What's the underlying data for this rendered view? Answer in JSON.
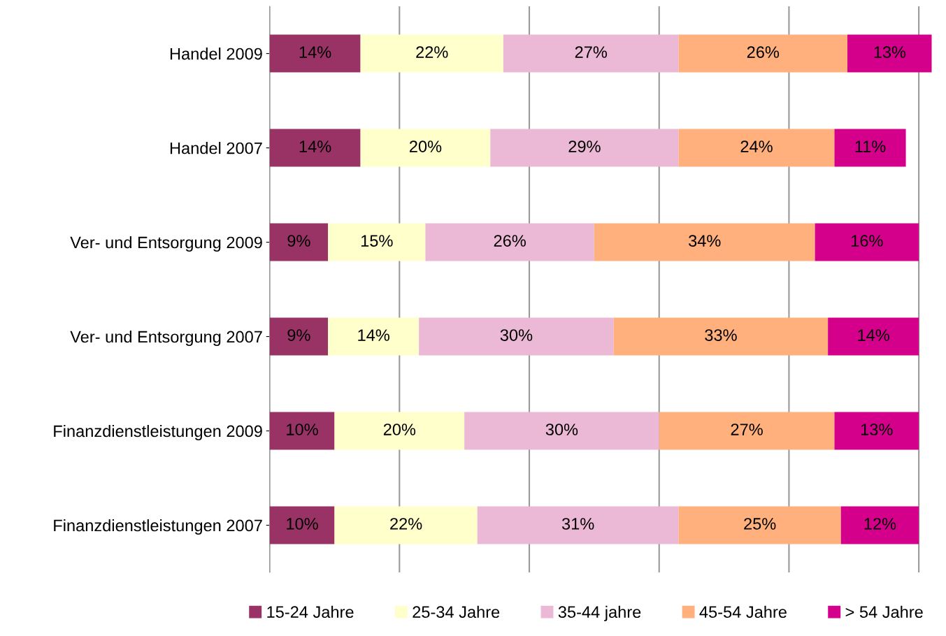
{
  "chart_data": {
    "type": "bar",
    "orientation": "horizontal",
    "stacked": true,
    "grid": "x",
    "legend": "bottom",
    "tick_labels": "y",
    "categories": [
      "Handel 2009",
      "Handel 2007",
      "Ver- und Entsorgung 2009",
      "Ver- und Entsorgung 2007",
      "Finanzdienstleistungen 2009",
      "Finanzdienstleistungen 2007"
    ],
    "series": [
      {
        "name": "15-24 Jahre",
        "color": "#993366",
        "values": [
          14,
          14,
          9,
          9,
          10,
          10
        ],
        "value_labels": [
          "14%",
          "14%",
          "9%",
          "9%",
          "10%",
          "10%"
        ]
      },
      {
        "name": "25-34 Jahre",
        "color": "#ffffcc",
        "values": [
          22,
          20,
          15,
          14,
          20,
          22
        ],
        "value_labels": [
          "22%",
          "20%",
          "15%",
          "14%",
          "20%",
          "22%"
        ]
      },
      {
        "name": "35-44 jahre",
        "color": "#ebb9d5",
        "values": [
          27,
          29,
          26,
          30,
          30,
          31
        ],
        "value_labels": [
          "27%",
          "29%",
          "26%",
          "30%",
          "30%",
          "31%"
        ]
      },
      {
        "name": "45-54 Jahre",
        "color": "#ffb07c",
        "values": [
          26,
          24,
          34,
          33,
          27,
          25
        ],
        "value_labels": [
          "26%",
          "24%",
          "34%",
          "33%",
          "27%",
          "25%"
        ]
      },
      {
        "name": "> 54 Jahre",
        "color": "#d4008c",
        "values": [
          13,
          11,
          16,
          14,
          13,
          12
        ],
        "value_labels": [
          "13%",
          "11%",
          "16%",
          "14%",
          "13%",
          "12%"
        ]
      }
    ]
  }
}
